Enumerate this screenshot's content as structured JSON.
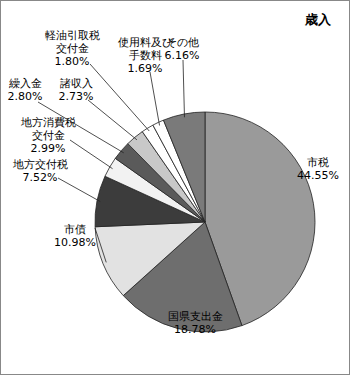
{
  "chart_data": {
    "type": "pie",
    "title": "歳入",
    "categories": [
      "市税",
      "国県支出金",
      "市債",
      "地方交付税",
      "地方消費税\n交付金",
      "繰入金",
      "諸収入",
      "軽油引取税\n交付金",
      "使用料及び\n手数料",
      "その他"
    ],
    "values": [
      44.55,
      18.78,
      10.98,
      7.52,
      2.99,
      2.8,
      2.73,
      1.8,
      1.69,
      6.16
    ],
    "value_labels": [
      "44.55%",
      "18.78%",
      "10.98%",
      "7.52%",
      "2.99%",
      "2.80%",
      "2.73%",
      "1.80%",
      "1.69%",
      "6.16%"
    ],
    "colors": [
      "#9a9a9a",
      "#6e6e6e",
      "#e2e2e2",
      "#3c3c3c",
      "#f2f2f2",
      "#5a5a5a",
      "#c8c8c8",
      "#ffffff",
      "#ffffff",
      "#7a7a7a"
    ],
    "data_labels": true
  }
}
